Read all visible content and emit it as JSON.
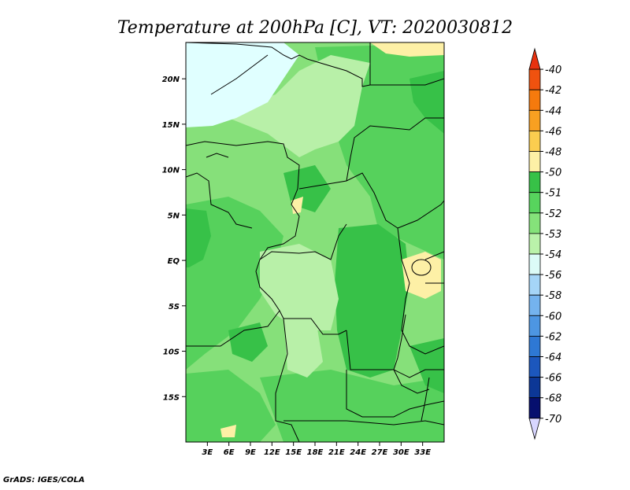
{
  "title": "Temperature at 200hPa [C], VT: 2020030812",
  "footer": "GrADS: IGES/COLA",
  "map": {
    "lon_range": [
      0,
      36
    ],
    "lat_range": [
      -20,
      24
    ],
    "lon_ticks": [
      "3E",
      "6E",
      "9E",
      "12E",
      "15E",
      "18E",
      "21E",
      "24E",
      "27E",
      "30E",
      "33E"
    ],
    "lon_tick_values": [
      3,
      6,
      9,
      12,
      15,
      18,
      21,
      24,
      27,
      30,
      33
    ],
    "lat_ticks": [
      "20N",
      "15N",
      "10N",
      "5N",
      "EQ",
      "5S",
      "10S",
      "15S"
    ],
    "lat_tick_values": [
      20,
      15,
      10,
      5,
      0,
      -5,
      -10,
      -15
    ]
  },
  "colorbar": {
    "labels": [
      "-40",
      "-42",
      "-44",
      "-46",
      "-48",
      "-50",
      "-51",
      "-52",
      "-53",
      "-54",
      "-56",
      "-58",
      "-60",
      "-62",
      "-64",
      "-66",
      "-68",
      "-70"
    ],
    "colors": [
      "#e8320f",
      "#f0520f",
      "#f57a0d",
      "#f8a021",
      "#fbcd4f",
      "#fdf0a6",
      "#37c147",
      "#57d45d",
      "#85e27a",
      "#baf2aa",
      "#dcfbf7",
      "#a5d5f7",
      "#74b3ee",
      "#4d96e2",
      "#2e78d4",
      "#1c57bd",
      "#0c3796",
      "#060f6e",
      "#0a0a5a",
      "#d8d6ff"
    ]
  },
  "palette": {
    "light_cyan": "#e0ffff",
    "pale_green": "#b8f0a8",
    "light_green": "#86e07a",
    "mid_green": "#56d15c",
    "dark_green": "#37c148",
    "pale_yellow": "#fdf0a6"
  }
}
